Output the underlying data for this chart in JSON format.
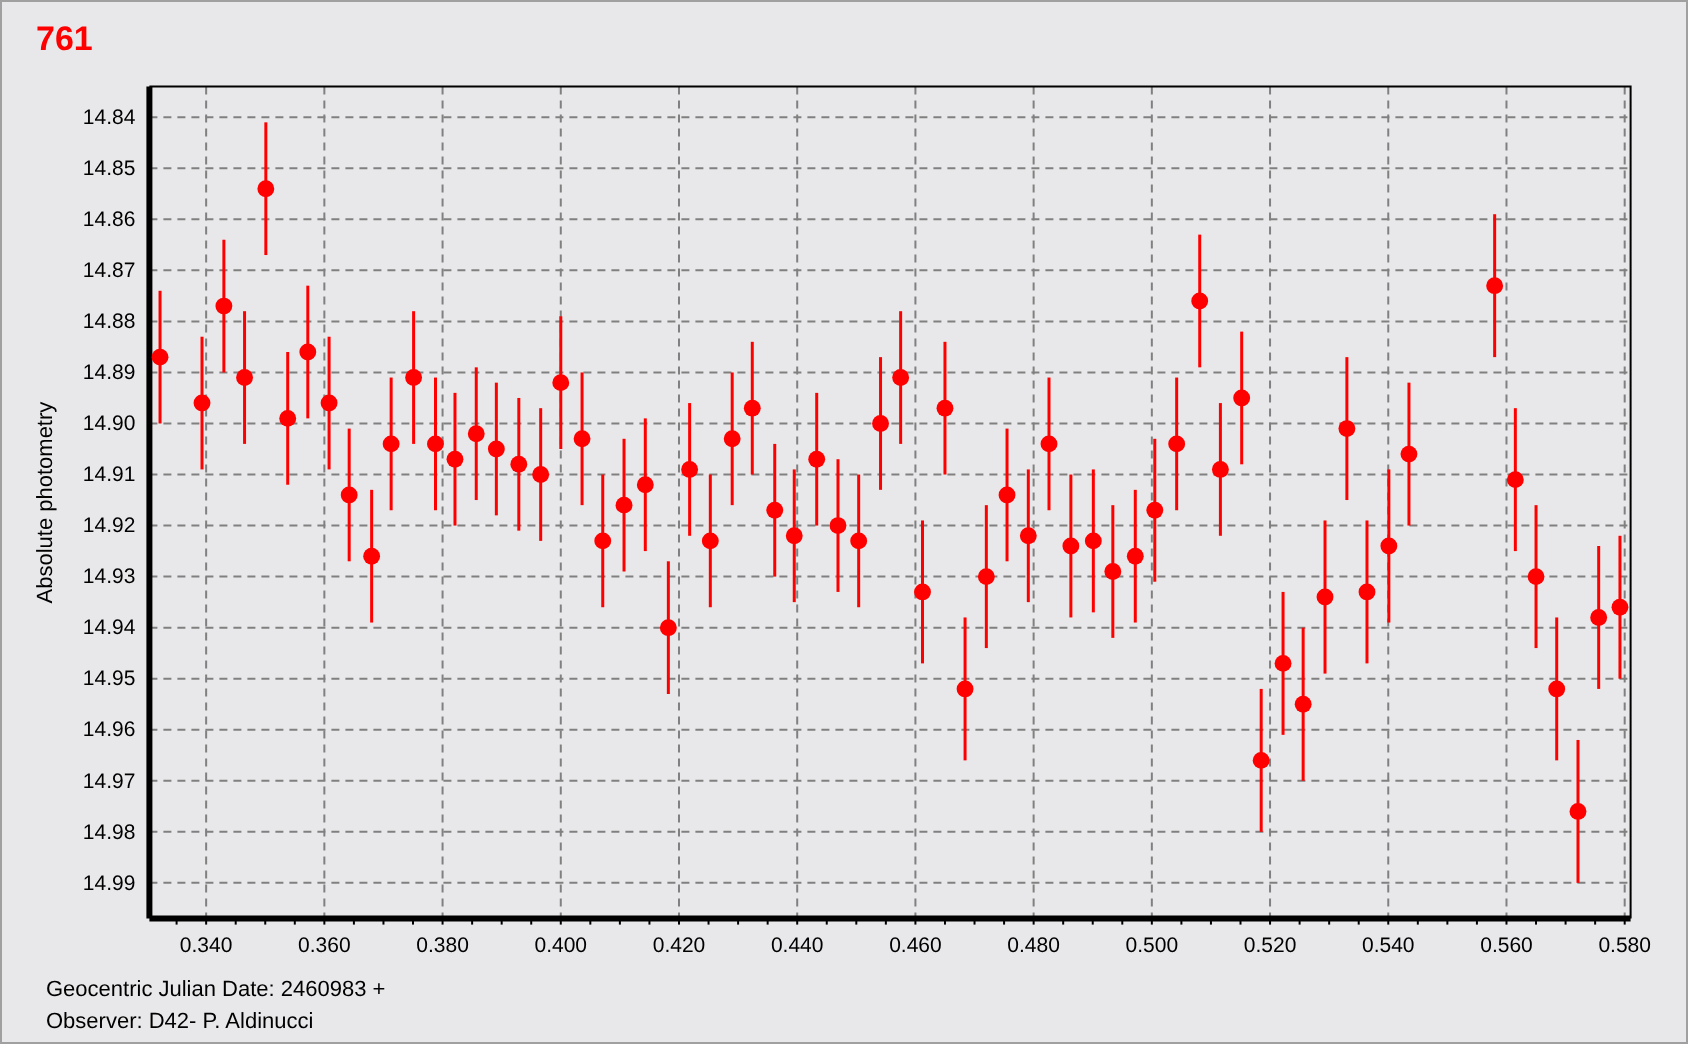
{
  "chart_data": {
    "type": "scatter",
    "title": "761",
    "xlabel": "Geocentric Julian Date: 2460983 +",
    "ylabel": "Absolute photometry",
    "annotations": [
      "Observer: D42- P. Aldinucci"
    ],
    "x": [
      0.3322,
      0.3393,
      0.343,
      0.3465,
      0.3501,
      0.3538,
      0.3572,
      0.3608,
      0.3642,
      0.368,
      0.3713,
      0.3751,
      0.3788,
      0.3821,
      0.3857,
      0.3891,
      0.3929,
      0.3966,
      0.4,
      0.4036,
      0.4071,
      0.4107,
      0.4143,
      0.4182,
      0.4218,
      0.4253,
      0.429,
      0.4324,
      0.4362,
      0.4395,
      0.4433,
      0.4469,
      0.4504,
      0.4541,
      0.4575,
      0.4612,
      0.465,
      0.4684,
      0.472,
      0.4755,
      0.4791,
      0.4826,
      0.4863,
      0.4901,
      0.4934,
      0.4972,
      0.5005,
      0.5042,
      0.5081,
      0.5116,
      0.5152,
      0.5185,
      0.5222,
      0.5256,
      0.5293,
      0.533,
      0.5364,
      0.5401,
      0.5435,
      0.558,
      0.5615,
      0.565,
      0.5685,
      0.5721,
      0.5756,
      0.5792
    ],
    "values": [
      14.887,
      14.896,
      14.877,
      14.891,
      14.854,
      14.899,
      14.886,
      14.896,
      14.914,
      14.926,
      14.904,
      14.891,
      14.904,
      14.907,
      14.902,
      14.905,
      14.908,
      14.91,
      14.892,
      14.903,
      14.923,
      14.916,
      14.912,
      14.94,
      14.909,
      14.923,
      14.903,
      14.897,
      14.917,
      14.922,
      14.907,
      14.92,
      14.923,
      14.9,
      14.891,
      14.933,
      14.897,
      14.952,
      14.93,
      14.914,
      14.922,
      14.904,
      14.924,
      14.923,
      14.929,
      14.926,
      14.917,
      14.904,
      14.876,
      14.909,
      14.895,
      14.966,
      14.947,
      14.955,
      14.934,
      14.901,
      14.933,
      14.924,
      14.906,
      14.873,
      14.911,
      14.93,
      14.952,
      14.976,
      14.938,
      14.936
    ],
    "errors": [
      0.013,
      0.013,
      0.013,
      0.013,
      0.013,
      0.013,
      0.013,
      0.013,
      0.013,
      0.013,
      0.013,
      0.013,
      0.013,
      0.013,
      0.013,
      0.013,
      0.013,
      0.013,
      0.013,
      0.013,
      0.013,
      0.013,
      0.013,
      0.013,
      0.013,
      0.013,
      0.013,
      0.013,
      0.013,
      0.013,
      0.013,
      0.013,
      0.013,
      0.013,
      0.013,
      0.014,
      0.013,
      0.014,
      0.014,
      0.013,
      0.013,
      0.013,
      0.014,
      0.014,
      0.013,
      0.013,
      0.014,
      0.013,
      0.013,
      0.013,
      0.013,
      0.014,
      0.014,
      0.015,
      0.015,
      0.014,
      0.014,
      0.015,
      0.014,
      0.014,
      0.014,
      0.014,
      0.014,
      0.014,
      0.014,
      0.014
    ],
    "color": "#ff0000",
    "marker": "circle",
    "grid": true,
    "xlim": [
      0.3304,
      0.581
    ],
    "ylim": [
      14.997,
      14.834
    ],
    "xticks": [
      {
        "value": 0.335,
        "label": null
      },
      {
        "value": 0.34,
        "label": "0.340"
      },
      {
        "value": 0.345,
        "label": null
      },
      {
        "value": 0.35,
        "label": null
      },
      {
        "value": 0.355,
        "label": null
      },
      {
        "value": 0.36,
        "label": "0.360"
      },
      {
        "value": 0.365,
        "label": null
      },
      {
        "value": 0.37,
        "label": null
      },
      {
        "value": 0.375,
        "label": null
      },
      {
        "value": 0.38,
        "label": "0.380"
      },
      {
        "value": 0.385,
        "label": null
      },
      {
        "value": 0.39,
        "label": null
      },
      {
        "value": 0.395,
        "label": null
      },
      {
        "value": 0.4,
        "label": "0.400"
      },
      {
        "value": 0.405,
        "label": null
      },
      {
        "value": 0.41,
        "label": null
      },
      {
        "value": 0.415,
        "label": null
      },
      {
        "value": 0.42,
        "label": "0.420"
      },
      {
        "value": 0.425,
        "label": null
      },
      {
        "value": 0.43,
        "label": null
      },
      {
        "value": 0.435,
        "label": null
      },
      {
        "value": 0.44,
        "label": "0.440"
      },
      {
        "value": 0.445,
        "label": null
      },
      {
        "value": 0.45,
        "label": null
      },
      {
        "value": 0.455,
        "label": null
      },
      {
        "value": 0.46,
        "label": "0.460"
      },
      {
        "value": 0.465,
        "label": null
      },
      {
        "value": 0.47,
        "label": null
      },
      {
        "value": 0.475,
        "label": null
      },
      {
        "value": 0.48,
        "label": "0.480"
      },
      {
        "value": 0.485,
        "label": null
      },
      {
        "value": 0.49,
        "label": null
      },
      {
        "value": 0.495,
        "label": null
      },
      {
        "value": 0.5,
        "label": "0.500"
      },
      {
        "value": 0.505,
        "label": null
      },
      {
        "value": 0.51,
        "label": null
      },
      {
        "value": 0.515,
        "label": null
      },
      {
        "value": 0.52,
        "label": "0.520"
      },
      {
        "value": 0.525,
        "label": null
      },
      {
        "value": 0.53,
        "label": null
      },
      {
        "value": 0.535,
        "label": null
      },
      {
        "value": 0.54,
        "label": "0.540"
      },
      {
        "value": 0.545,
        "label": null
      },
      {
        "value": 0.55,
        "label": null
      },
      {
        "value": 0.555,
        "label": null
      },
      {
        "value": 0.56,
        "label": "0.560"
      },
      {
        "value": 0.565,
        "label": null
      },
      {
        "value": 0.57,
        "label": null
      },
      {
        "value": 0.575,
        "label": null
      },
      {
        "value": 0.58,
        "label": "0.580"
      }
    ],
    "yticks": [
      14.84,
      14.85,
      14.86,
      14.87,
      14.88,
      14.89,
      {
        "value": 14.9,
        "label": "14.90"
      },
      14.91,
      14.92,
      14.93,
      14.94,
      14.95,
      14.96,
      14.97,
      14.98,
      14.99
    ]
  }
}
